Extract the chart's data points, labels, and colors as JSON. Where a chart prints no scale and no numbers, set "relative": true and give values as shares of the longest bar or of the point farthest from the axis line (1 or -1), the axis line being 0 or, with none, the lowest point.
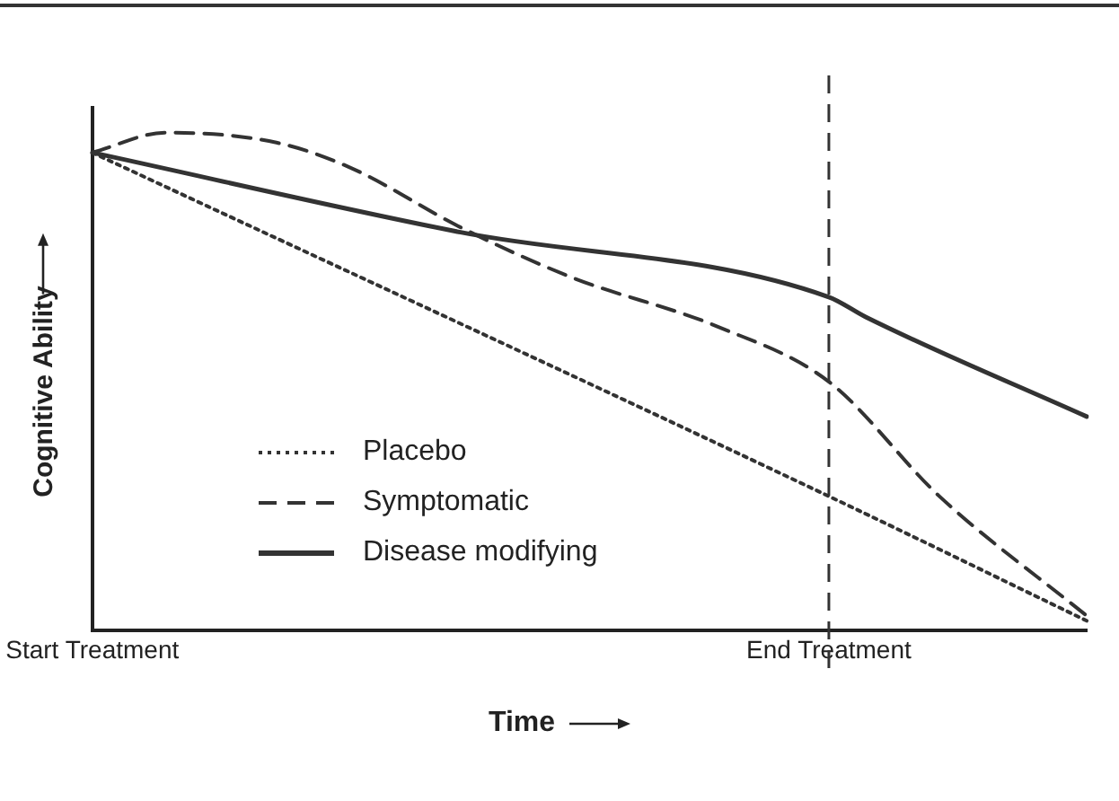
{
  "chart_data": {
    "type": "line",
    "relative": true,
    "xlabel": "Time",
    "ylabel": "Cognitive Ability",
    "categories": [
      "Start Treatment",
      null,
      null,
      null,
      null,
      null,
      null,
      null,
      null,
      null,
      null,
      null,
      null,
      null,
      null,
      null,
      null,
      null,
      null,
      null,
      "End Treatment",
      null,
      null,
      null,
      null,
      null,
      null,
      null
    ],
    "grid": false,
    "legend": "bottom left",
    "marker": "none",
    "ref_lines": [
      {
        "axis": "x",
        "value": "End Treatment",
        "line_style": "dashed",
        "color": "#333333"
      }
    ],
    "series": [
      {
        "name": "Placebo",
        "color": "#333333",
        "line_style": "dotted",
        "values": [
          0.96,
          null,
          null,
          null,
          null,
          null,
          null,
          null,
          null,
          null,
          null,
          null,
          null,
          null,
          null,
          null,
          null,
          null,
          null,
          null,
          0.27,
          null,
          null,
          null,
          null,
          null,
          null,
          0.02
        ]
      },
      {
        "name": "Symptomatic",
        "color": "#333333",
        "line_style": "dashed",
        "values": [
          0.96,
          null,
          1.0,
          null,
          null,
          0.98,
          null,
          0.93,
          null,
          null,
          0.81,
          null,
          null,
          0.71,
          null,
          null,
          null,
          0.61,
          null,
          null,
          0.5,
          null,
          null,
          0.27,
          null,
          null,
          null,
          0.03
        ]
      },
      {
        "name": "Disease modifying",
        "color": "#333333",
        "line_style": "solid",
        "values": [
          0.96,
          null,
          null,
          null,
          null,
          null,
          null,
          null,
          null,
          null,
          0.8,
          null,
          null,
          null,
          null,
          null,
          null,
          null,
          null,
          null,
          0.67,
          0.63,
          null,
          null,
          null,
          null,
          null,
          0.43
        ]
      }
    ]
  }
}
